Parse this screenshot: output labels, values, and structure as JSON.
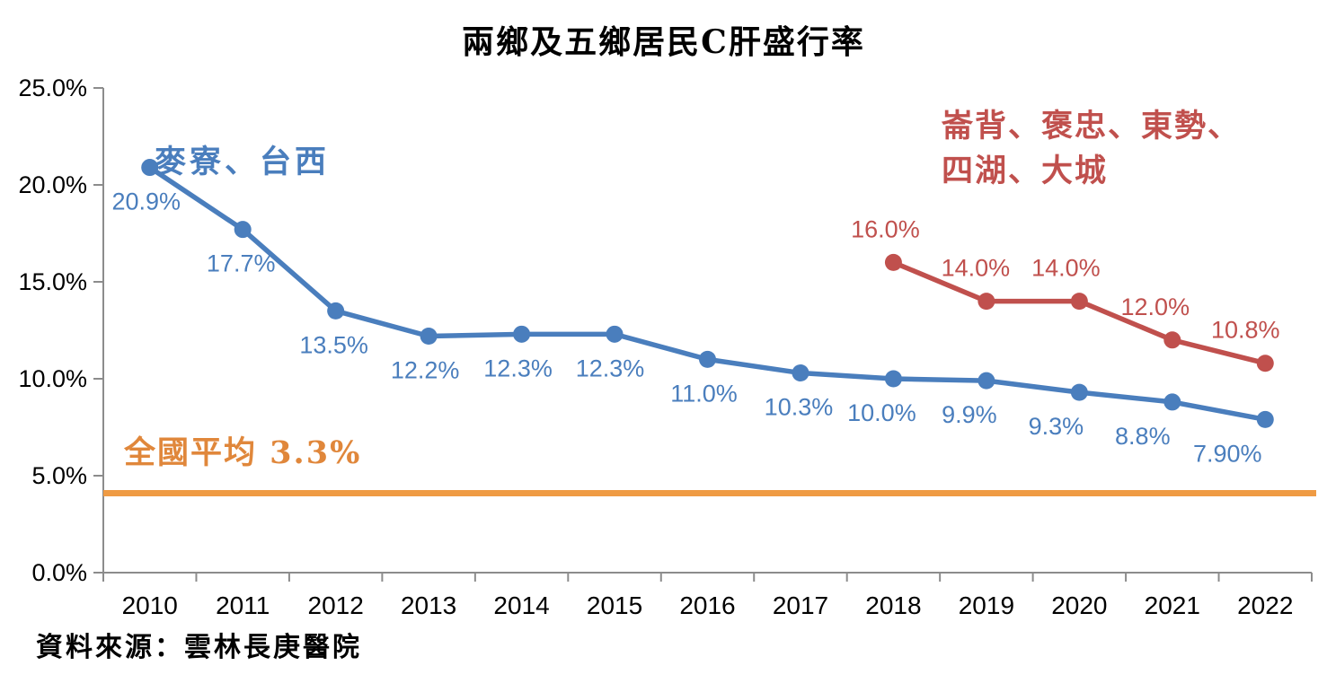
{
  "title": "兩鄉及五鄉居民C肝盛行率",
  "source_note": "資料來源：雲林長庚醫院",
  "colors": {
    "blue": "#4A7EBD",
    "red": "#C0504D",
    "orange_line": "#EF9B44",
    "orange_text": "#E0873B",
    "axis": "#8C8C8C",
    "axis_text": "#000000",
    "background": "#FFFFFF"
  },
  "chart_data": {
    "type": "line",
    "title": "兩鄉及五鄉居民C肝盛行率",
    "categories": [
      "2010",
      "2011",
      "2012",
      "2013",
      "2014",
      "2015",
      "2016",
      "2017",
      "2018",
      "2019",
      "2020",
      "2021",
      "2022"
    ],
    "ylim": [
      0,
      25
    ],
    "yticks": [
      {
        "value": 0,
        "label": "0.0%"
      },
      {
        "value": 5,
        "label": "5.0%"
      },
      {
        "value": 10,
        "label": "10.0%"
      },
      {
        "value": 15,
        "label": "15.0%"
      },
      {
        "value": 20,
        "label": "20.0%"
      },
      {
        "value": 25,
        "label": "25.0%"
      }
    ],
    "grid": false,
    "legend_position": "none",
    "series": [
      {
        "name": "麥寮、台西",
        "color": "#4A7EBD",
        "values": [
          20.9,
          17.7,
          13.5,
          12.2,
          12.3,
          12.3,
          11.0,
          10.3,
          10.0,
          9.9,
          9.3,
          8.8,
          7.9
        ],
        "labels": [
          "20.9%",
          "17.7%",
          "13.5%",
          "12.2%",
          "12.3%",
          "12.3%",
          "11.0%",
          "10.3%",
          "10.0%",
          "9.9%",
          "9.3%",
          "8.8%",
          "7.90%"
        ],
        "label_position": "below"
      },
      {
        "name": "崙背、褒忠、東勢、四湖、大城",
        "color": "#C0504D",
        "values": [
          null,
          null,
          null,
          null,
          null,
          null,
          null,
          null,
          16.0,
          14.0,
          14.0,
          12.0,
          10.8
        ],
        "labels": [
          null,
          null,
          null,
          null,
          null,
          null,
          null,
          null,
          "16.0%",
          "14.0%",
          "14.0%",
          "12.0%",
          "10.8%"
        ],
        "label_position": "above"
      }
    ],
    "reference_line": {
      "label": "全國平均 3.3%",
      "value": 3.3,
      "drawn_at": 4.1,
      "color": "#EF9B44"
    },
    "annotations": {
      "blue_series": {
        "text": "麥寮、台西",
        "color": "#4A7EBD"
      },
      "red_series": {
        "line1": "崙背、褒忠、東勢、",
        "line2": "四湖、大城",
        "color": "#C0504D"
      },
      "national_average": {
        "text": "全國平均 3.3%",
        "color": "#E0873B"
      }
    }
  }
}
